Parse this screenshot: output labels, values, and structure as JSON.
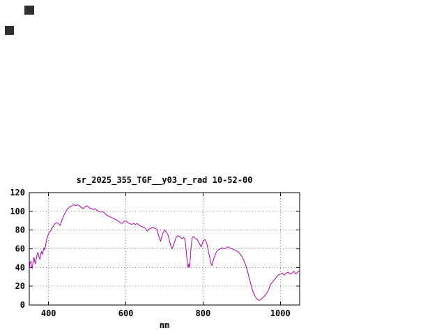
{
  "page": {
    "background": "#ffffff"
  },
  "decorations": {
    "squares": [
      {
        "color": "#303030"
      },
      {
        "color": "#303030"
      }
    ]
  },
  "chart_data": {
    "type": "line",
    "title": "sr_2025_355_TGF__y03_r_rad 10-52-00",
    "xlabel": "nm",
    "ylabel": "",
    "xlim": [
      350,
      1050
    ],
    "ylim": [
      0,
      120
    ],
    "xticks": [
      400,
      600,
      800,
      1000
    ],
    "yticks": [
      0,
      20,
      40,
      60,
      80,
      100,
      120
    ],
    "grid": true,
    "legend": "none",
    "line_color": "#b000b0",
    "grid_color": "#808080",
    "series": [
      {
        "x": [
          350,
          352,
          354,
          356,
          358,
          360,
          362,
          364,
          366,
          368,
          370,
          372,
          374,
          376,
          378,
          380,
          382,
          384,
          386,
          388,
          390,
          392,
          394,
          396,
          398,
          400,
          405,
          410,
          415,
          420,
          425,
          430,
          435,
          440,
          445,
          450,
          455,
          460,
          465,
          470,
          475,
          480,
          485,
          490,
          495,
          500,
          505,
          510,
          515,
          520,
          525,
          530,
          535,
          540,
          545,
          550,
          555,
          560,
          565,
          570,
          575,
          580,
          585,
          590,
          595,
          600,
          605,
          610,
          615,
          620,
          625,
          630,
          635,
          640,
          645,
          650,
          655,
          660,
          665,
          670,
          675,
          680,
          685,
          690,
          695,
          700,
          705,
          710,
          715,
          720,
          725,
          730,
          735,
          740,
          745,
          750,
          753,
          756,
          759,
          761,
          763,
          765,
          767,
          769,
          772,
          776,
          780,
          785,
          790,
          795,
          800,
          805,
          810,
          815,
          820,
          823,
          826,
          830,
          835,
          840,
          845,
          850,
          855,
          860,
          865,
          870,
          875,
          880,
          885,
          890,
          895,
          900,
          905,
          910,
          915,
          920,
          925,
          930,
          935,
          940,
          945,
          950,
          955,
          960,
          965,
          970,
          975,
          980,
          985,
          990,
          995,
          1000,
          1005,
          1010,
          1015,
          1020,
          1025,
          1030,
          1035,
          1040,
          1045,
          1050
        ],
        "y": [
          38,
          45,
          47,
          41,
          39,
          46,
          51,
          46,
          44,
          49,
          54,
          56,
          54,
          50,
          49,
          55,
          57,
          54,
          58,
          61,
          59,
          63,
          68,
          71,
          74,
          76,
          79,
          83,
          86,
          88,
          87,
          85,
          91,
          96,
          100,
          103,
          105,
          106,
          107,
          106,
          107,
          106,
          104,
          103,
          105,
          106,
          104,
          103,
          102,
          103,
          101,
          100,
          99,
          100,
          98,
          96,
          95,
          94,
          93,
          92,
          91,
          90,
          88,
          87,
          89,
          90,
          88,
          87,
          86,
          87,
          86,
          87,
          85,
          84,
          83,
          82,
          79,
          81,
          82,
          83,
          82,
          81,
          74,
          68,
          76,
          80,
          78,
          74,
          65,
          60,
          66,
          72,
          74,
          73,
          71,
          72,
          70,
          60,
          45,
          40,
          44,
          40,
          50,
          62,
          72,
          73,
          71,
          70,
          66,
          62,
          68,
          70,
          65,
          55,
          45,
          42,
          47,
          52,
          57,
          59,
          60,
          61,
          60,
          61,
          62,
          61,
          60,
          59,
          58,
          57,
          55,
          52,
          48,
          43,
          36,
          28,
          20,
          13,
          9,
          6,
          5,
          6,
          8,
          10,
          13,
          17,
          22,
          25,
          27,
          30,
          32,
          33,
          34,
          32,
          34,
          35,
          33,
          34,
          36,
          33,
          35,
          37
        ]
      }
    ]
  }
}
